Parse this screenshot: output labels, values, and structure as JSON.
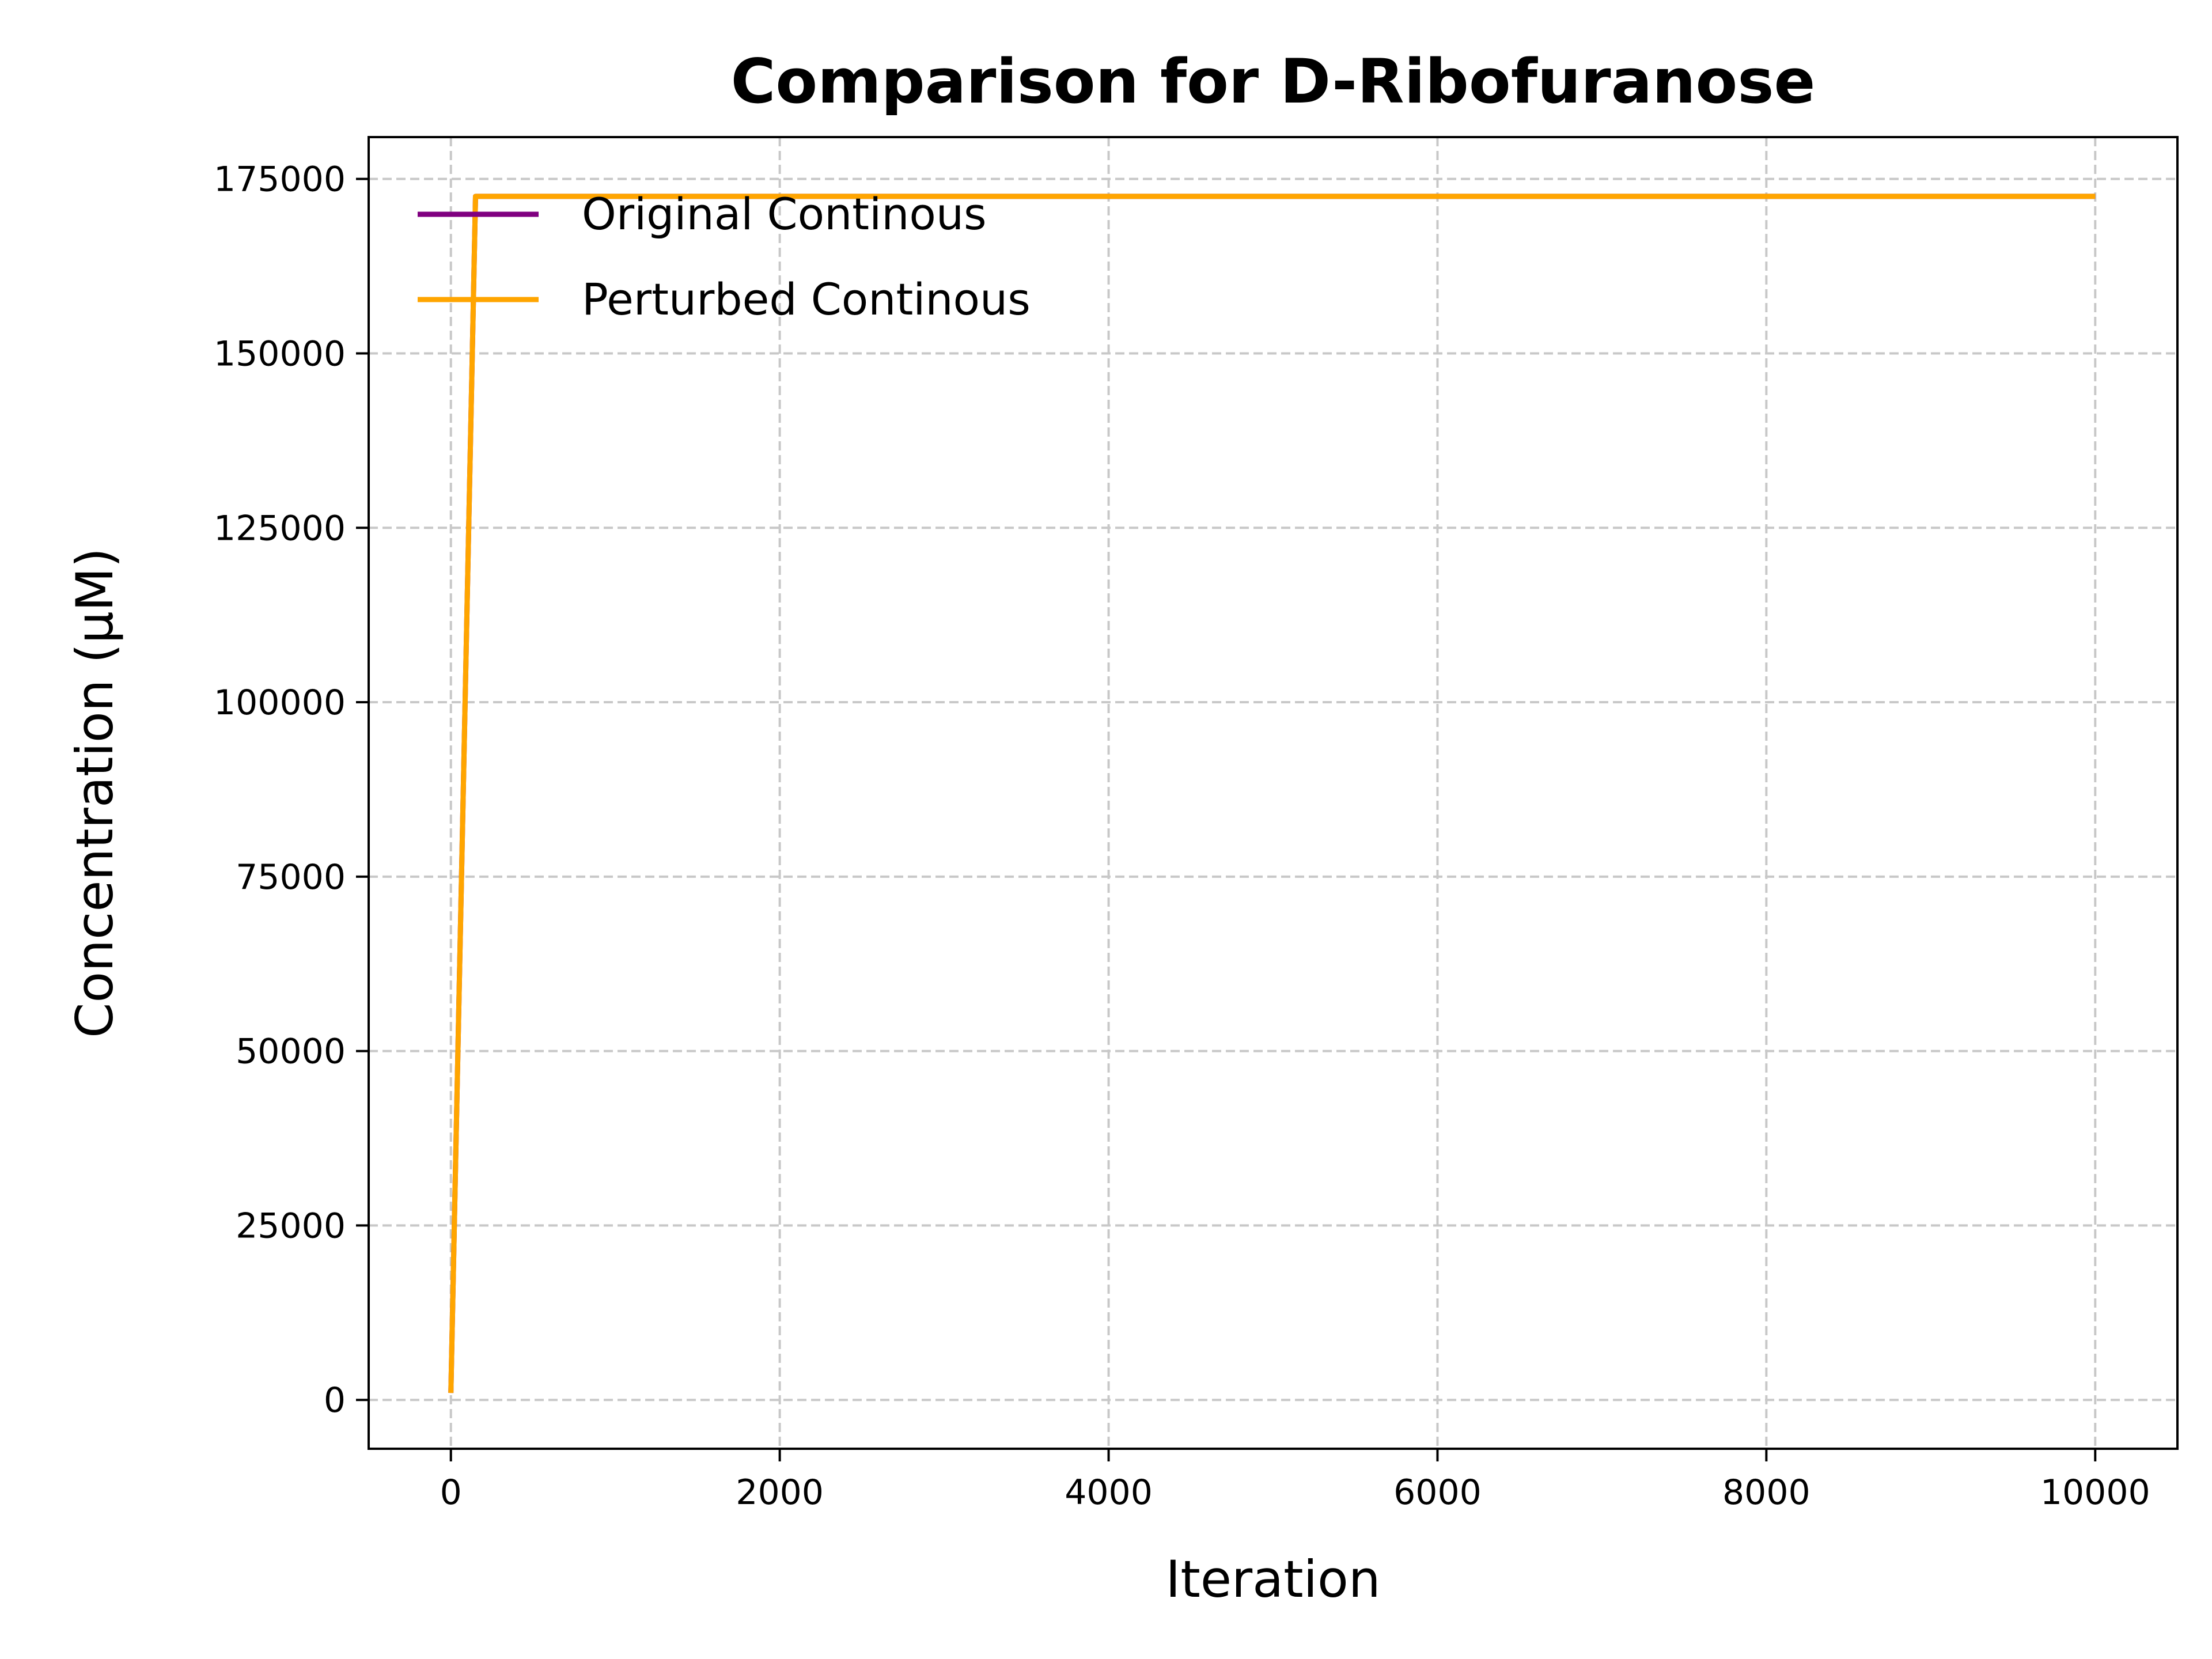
{
  "chart_data": {
    "type": "line",
    "title": "Comparison for D-Ribofuranose",
    "xlabel": "Iteration",
    "ylabel": "Concentration (μM)",
    "xlim": [
      -500,
      10500
    ],
    "ylim": [
      -7000,
      181000
    ],
    "xticks": [
      0,
      2000,
      4000,
      6000,
      8000,
      10000
    ],
    "yticks": [
      0,
      25000,
      50000,
      75000,
      100000,
      125000,
      150000,
      175000
    ],
    "grid": true,
    "legend_position": "upper-left",
    "series": [
      {
        "name": "Original Continous",
        "color": "#800080",
        "x": [
          0,
          150,
          10000
        ],
        "y": [
          1000,
          172500,
          172500
        ]
      },
      {
        "name": "Perturbed Continous",
        "color": "#ffa500",
        "x": [
          0,
          150,
          10000
        ],
        "y": [
          1000,
          172500,
          172500
        ]
      }
    ]
  }
}
